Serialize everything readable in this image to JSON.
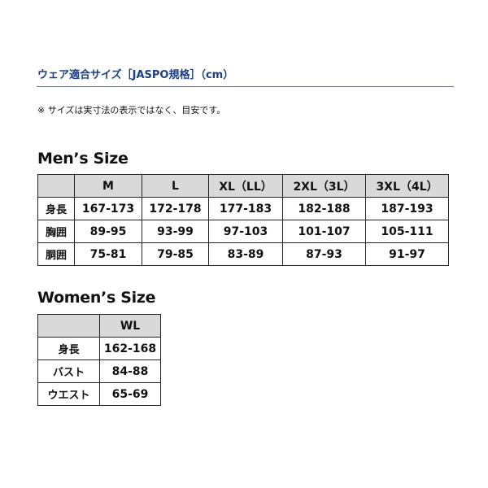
{
  "header": {
    "title": "ウェア適合サイズ［JASPO規格］（cm）",
    "note": "※ サイズは実寸法の表示ではなく、目安です。"
  },
  "mens": {
    "heading": "Men’s Size",
    "columns": [
      "",
      "M",
      "L",
      "XL（LL）",
      "2XL（3L）",
      "3XL（4L）"
    ],
    "rows": [
      {
        "label": "身長",
        "values": [
          "167-173",
          "172-178",
          "177-183",
          "182-188",
          "187-193"
        ]
      },
      {
        "label": "胸囲",
        "values": [
          "89-95",
          "93-99",
          "97-103",
          "101-107",
          "105-111"
        ]
      },
      {
        "label": "胴囲",
        "values": [
          "75-81",
          "79-85",
          "83-89",
          "87-93",
          "91-97"
        ]
      }
    ]
  },
  "womens": {
    "heading": "Women’s Size",
    "columns": [
      "",
      "WL"
    ],
    "rows": [
      {
        "label": "身長",
        "values": [
          "162-168"
        ]
      },
      {
        "label": "バスト",
        "values": [
          "84-88"
        ]
      },
      {
        "label": "ウエスト",
        "values": [
          "65-69"
        ]
      }
    ]
  },
  "colors": {
    "title": "#1b3f86",
    "header_bg": "#d9d9d9",
    "border": "#222222"
  }
}
